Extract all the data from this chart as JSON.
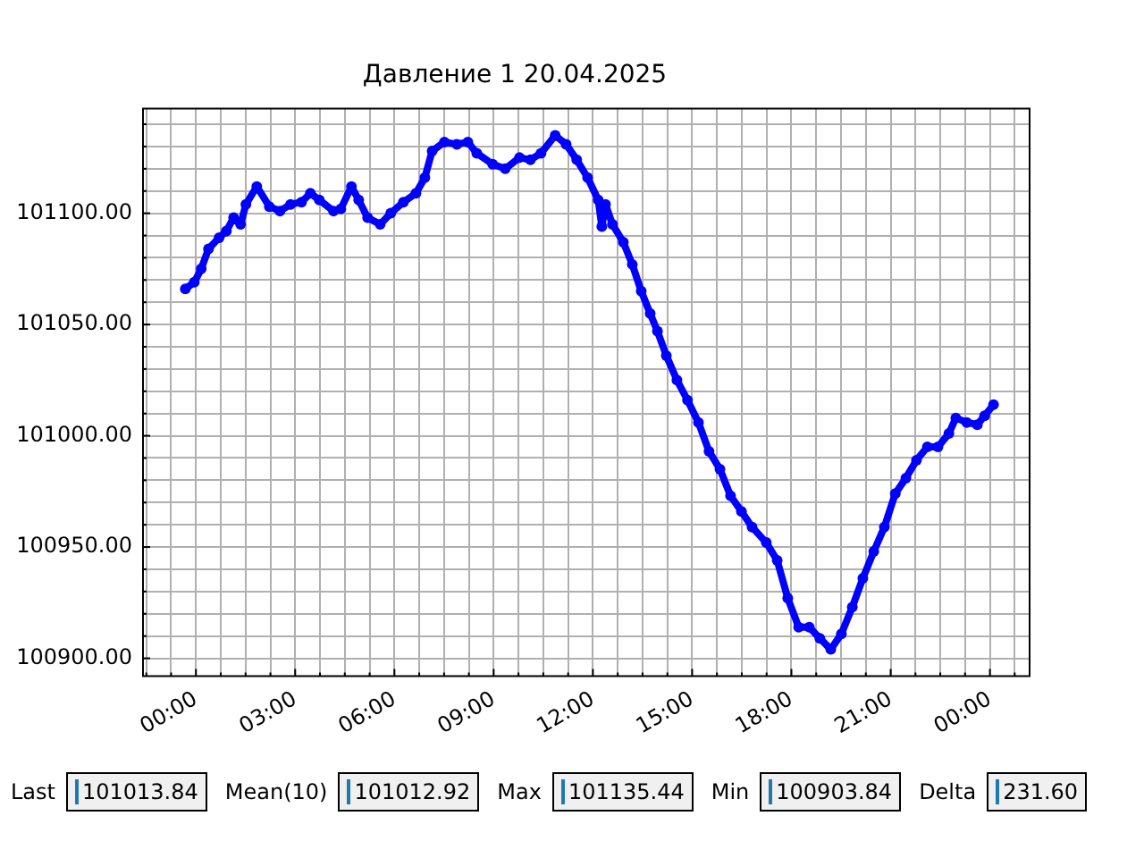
{
  "chart_data": {
    "type": "line",
    "title": "Давление 1 20.04.2025",
    "marker": "circle",
    "grid": true,
    "xlim": [
      -1.6,
      25.2
    ],
    "xticks": [
      {
        "value": -1.5,
        "label": null
      },
      {
        "value": -0.75,
        "label": null
      },
      {
        "value": 0,
        "label": "00:00"
      },
      {
        "value": 0.75,
        "label": null
      },
      {
        "value": 1.5,
        "label": null
      },
      {
        "value": 2.25,
        "label": null
      },
      {
        "value": 3,
        "label": "03:00"
      },
      {
        "value": 3.75,
        "label": null
      },
      {
        "value": 4.5,
        "label": null
      },
      {
        "value": 5.25,
        "label": null
      },
      {
        "value": 6,
        "label": "06:00"
      },
      {
        "value": 6.75,
        "label": null
      },
      {
        "value": 7.5,
        "label": null
      },
      {
        "value": 8.25,
        "label": null
      },
      {
        "value": 9,
        "label": "09:00"
      },
      {
        "value": 9.75,
        "label": null
      },
      {
        "value": 10.5,
        "label": null
      },
      {
        "value": 11.25,
        "label": null
      },
      {
        "value": 12,
        "label": "12:00"
      },
      {
        "value": 12.75,
        "label": null
      },
      {
        "value": 13.5,
        "label": null
      },
      {
        "value": 14.25,
        "label": null
      },
      {
        "value": 15,
        "label": "15:00"
      },
      {
        "value": 15.75,
        "label": null
      },
      {
        "value": 16.5,
        "label": null
      },
      {
        "value": 17.25,
        "label": null
      },
      {
        "value": 18,
        "label": "18:00"
      },
      {
        "value": 18.75,
        "label": null
      },
      {
        "value": 19.5,
        "label": null
      },
      {
        "value": 20.25,
        "label": null
      },
      {
        "value": 21,
        "label": "21:00"
      },
      {
        "value": 21.75,
        "label": null
      },
      {
        "value": 22.5,
        "label": null
      },
      {
        "value": 23.25,
        "label": null
      },
      {
        "value": 24,
        "label": "00:00"
      },
      {
        "value": 24.75,
        "label": null
      }
    ],
    "ylim": [
      100892,
      101147
    ],
    "yticks": [
      {
        "value": 100900,
        "label": "100900.00"
      },
      {
        "value": 100910,
        "label": null
      },
      {
        "value": 100920,
        "label": null
      },
      {
        "value": 100930,
        "label": null
      },
      {
        "value": 100940,
        "label": null
      },
      {
        "value": 100950,
        "label": "100950.00"
      },
      {
        "value": 100960,
        "label": null
      },
      {
        "value": 100970,
        "label": null
      },
      {
        "value": 100980,
        "label": null
      },
      {
        "value": 100990,
        "label": null
      },
      {
        "value": 101000,
        "label": "101000.00"
      },
      {
        "value": 101010,
        "label": null
      },
      {
        "value": 101020,
        "label": null
      },
      {
        "value": 101030,
        "label": null
      },
      {
        "value": 101040,
        "label": null
      },
      {
        "value": 101050,
        "label": "101050.00"
      },
      {
        "value": 101060,
        "label": null
      },
      {
        "value": 101070,
        "label": null
      },
      {
        "value": 101080,
        "label": null
      },
      {
        "value": 101090,
        "label": null
      },
      {
        "value": 101100,
        "label": "101100.00"
      },
      {
        "value": 101110,
        "label": null
      },
      {
        "value": 101120,
        "label": null
      },
      {
        "value": 101130,
        "label": null
      },
      {
        "value": 101140,
        "label": null
      }
    ],
    "x": [
      -0.32,
      -0.05,
      0.16,
      0.38,
      0.7,
      0.92,
      1.14,
      1.35,
      1.51,
      1.84,
      2.22,
      2.54,
      2.86,
      3.19,
      3.46,
      3.73,
      4.16,
      4.38,
      4.7,
      4.92,
      5.19,
      5.57,
      5.89,
      6.27,
      6.65,
      6.92,
      7.14,
      7.51,
      7.89,
      8.22,
      8.49,
      8.97,
      9.35,
      9.78,
      10.11,
      10.43,
      10.86,
      11.19,
      11.51,
      11.84,
      12.16,
      12.27,
      12.38,
      12.59,
      12.92,
      13.19,
      13.46,
      13.73,
      13.95,
      14.22,
      14.54,
      14.86,
      15.19,
      15.51,
      15.84,
      16.16,
      16.49,
      16.81,
      17.24,
      17.57,
      17.89,
      18.22,
      18.54,
      18.86,
      19.19,
      19.51,
      19.84,
      20.16,
      20.49,
      20.81,
      21.14,
      21.46,
      21.78,
      22.11,
      22.43,
      22.76,
      22.97,
      23.3,
      23.62,
      23.84,
      24.11
    ],
    "series": [
      {
        "color": "#0000ff",
        "values": [
          101066,
          101069,
          101075,
          101084,
          101089,
          101092,
          101098,
          101095,
          101104,
          101112,
          101103,
          101101,
          101104,
          101105,
          101109,
          101106,
          101101,
          101102,
          101112,
          101106,
          101098,
          101095,
          101100,
          101105,
          101109,
          101116,
          101128,
          101132,
          101131,
          101132,
          101127,
          101122,
          101120,
          101125,
          101124,
          101127,
          101135,
          101131,
          101124,
          101116,
          101106,
          101094,
          101104,
          101095,
          101087,
          101077,
          101065,
          101055,
          101047,
          101036,
          101025,
          101016,
          101006,
          100993,
          100985,
          100973,
          100966,
          100959,
          100952,
          100944,
          100927,
          100914,
          100914,
          100909,
          100904,
          100911,
          100923,
          100936,
          100948,
          100959,
          100974,
          100981,
          100989,
          100995,
          100995,
          101001,
          101008,
          101006,
          101005,
          101009,
          101014
        ]
      }
    ],
    "annotations": [
      "Last",
      "101013.84",
      "Mean(10)",
      "101012.92",
      "Max",
      "101135.44",
      "Min",
      "100903.84",
      "Delta",
      "231.60"
    ]
  }
}
